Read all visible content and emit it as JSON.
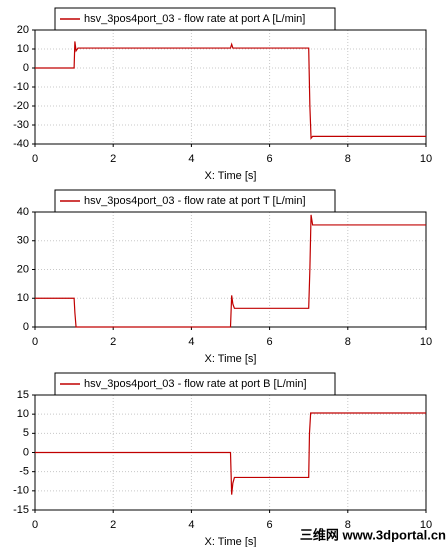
{
  "chart_data": [
    {
      "type": "line",
      "xlabel": "X: Time [s]",
      "x": [
        0,
        1.0,
        1.02,
        1.05,
        1.1,
        5.0,
        5.03,
        5.06,
        7.0,
        7.03,
        7.06,
        7.1,
        10
      ],
      "series": [
        {
          "name": "hsv_3pos4port_03 - flow rate at port A [L/min]",
          "color": "#c00000",
          "values": [
            0,
            0,
            14,
            9,
            10.5,
            10.5,
            12.5,
            10.5,
            10.5,
            -20,
            -37,
            -36,
            -36
          ]
        }
      ],
      "xlim": [
        0,
        10
      ],
      "xticks": [
        0,
        2,
        4,
        6,
        8,
        10
      ],
      "ylim": [
        -40,
        20
      ],
      "yticks": [
        -40,
        -30,
        -20,
        -10,
        0,
        10,
        20
      ],
      "grid": true
    },
    {
      "type": "line",
      "xlabel": "X: Time [s]",
      "x": [
        0,
        1.0,
        1.02,
        1.05,
        5.0,
        5.03,
        5.06,
        5.1,
        7.0,
        7.03,
        7.06,
        7.1,
        10
      ],
      "series": [
        {
          "name": "hsv_3pos4port_03 - flow rate at port T [L/min]",
          "color": "#c00000",
          "values": [
            10,
            10,
            5,
            0,
            0,
            11,
            8,
            6.5,
            6.5,
            20,
            39,
            35.5,
            35.5
          ]
        }
      ],
      "xlim": [
        0,
        10
      ],
      "xticks": [
        0,
        2,
        4,
        6,
        8,
        10
      ],
      "ylim": [
        0,
        40
      ],
      "yticks": [
        0,
        10,
        20,
        30,
        40
      ],
      "grid": true
    },
    {
      "type": "line",
      "xlabel": "X: Time [s]",
      "x": [
        0,
        5.0,
        5.03,
        5.06,
        5.1,
        7.0,
        7.02,
        7.05,
        10
      ],
      "series": [
        {
          "name": "hsv_3pos4port_03 - flow rate at port B [L/min]",
          "color": "#c00000",
          "values": [
            0,
            0,
            -11,
            -8,
            -6.5,
            -6.5,
            5,
            10.3,
            10.3
          ]
        }
      ],
      "xlim": [
        0,
        10
      ],
      "xticks": [
        0,
        2,
        4,
        6,
        8,
        10
      ],
      "ylim": [
        -15,
        15
      ],
      "yticks": [
        -15,
        -10,
        -5,
        0,
        5,
        10,
        15
      ],
      "grid": true
    }
  ],
  "watermark": "三维网 www.3dportal.cn"
}
